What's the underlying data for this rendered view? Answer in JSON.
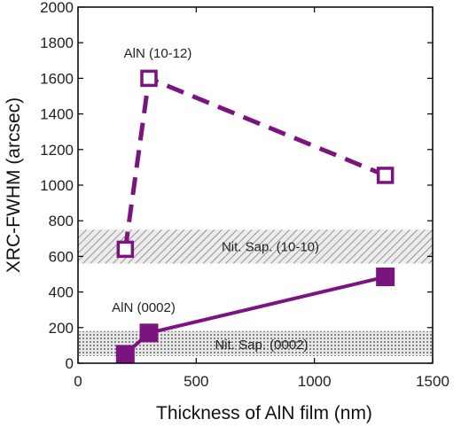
{
  "chart_data": {
    "type": "line",
    "title": "",
    "xlabel": "Thickness of AlN film (nm)",
    "ylabel": "XRC-FWHM (arcsec)",
    "xlim": [
      0,
      1500
    ],
    "ylim": [
      0,
      2000
    ],
    "xticks": [
      0,
      500,
      1000,
      1500
    ],
    "yticks": [
      0,
      200,
      400,
      600,
      800,
      1000,
      1200,
      1400,
      1600,
      1800,
      2000
    ],
    "grid": false,
    "legend": "none",
    "series": [
      {
        "name": "AlN (10-12)",
        "x": [
          200,
          300,
          1300
        ],
        "y": [
          640,
          1600,
          1055
        ],
        "line_style": "dashed",
        "marker": "open-square",
        "color": "#7b147f"
      },
      {
        "name": "AlN (0002)",
        "x": [
          200,
          300,
          1300
        ],
        "y": [
          50,
          170,
          485
        ],
        "line_style": "solid",
        "marker": "filled-square",
        "color": "#7b147f"
      }
    ],
    "bands": [
      {
        "label": "Nit. Sap. (10-10)",
        "y_range": [
          560,
          750
        ],
        "pattern": "diagonal-hatch"
      },
      {
        "label": "Nit. Sap. (0002)",
        "y_range": [
          40,
          180
        ],
        "pattern": "dots"
      }
    ]
  }
}
